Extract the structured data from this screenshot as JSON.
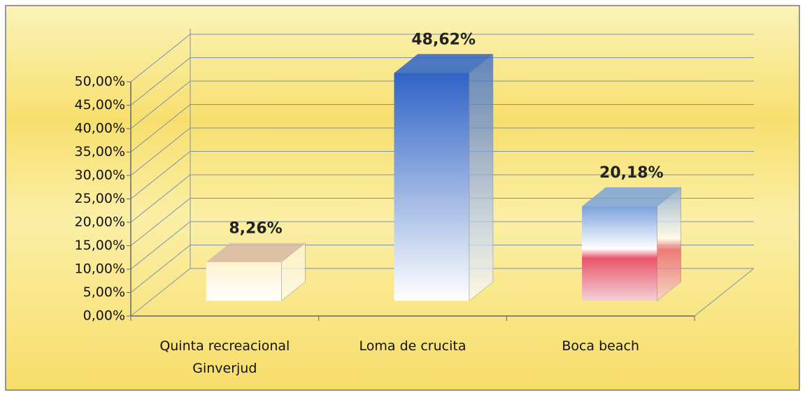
{
  "chart_data": {
    "type": "bar3d",
    "categories": [
      "Quinta recreacional Ginverjud",
      "Loma de crucita",
      "Boca beach"
    ],
    "values": [
      8.26,
      48.62,
      20.18
    ],
    "value_labels": [
      "8,26%",
      "48,62%",
      "20,18%"
    ],
    "colors": [
      "#fbf3cf",
      "#2f63c6",
      "#7da2dc"
    ],
    "ylim": [
      0,
      50
    ],
    "yticks": [
      {
        "value": 0,
        "label": "0,00%"
      },
      {
        "value": 5,
        "label": "5,00%"
      },
      {
        "value": 10,
        "label": "10,00%"
      },
      {
        "value": 15,
        "label": "15,00%"
      },
      {
        "value": 20,
        "label": "20,00%"
      },
      {
        "value": 25,
        "label": "25,00%"
      },
      {
        "value": 30,
        "label": "30,00%"
      },
      {
        "value": 35,
        "label": "35,00%"
      },
      {
        "value": 40,
        "label": "40,00%"
      },
      {
        "value": 45,
        "label": "45,00%"
      },
      {
        "value": 50,
        "label": "50,00%"
      }
    ],
    "grid": true
  }
}
